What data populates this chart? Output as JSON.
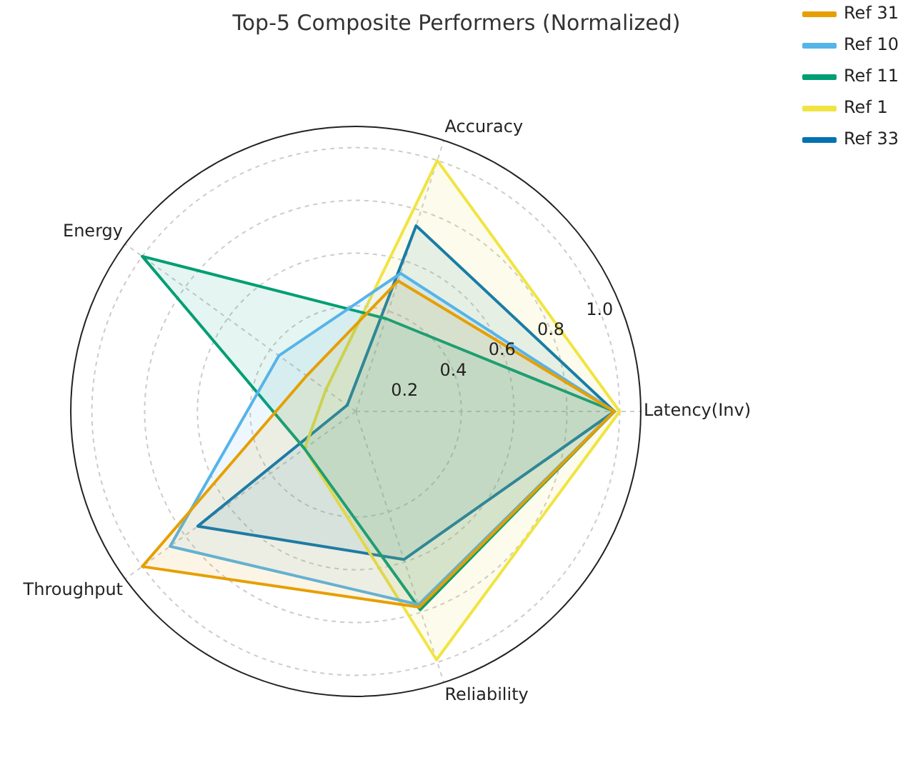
{
  "chart_data": {
    "type": "radar",
    "title": "Top-5 Composite Performers (Normalized)",
    "categories": [
      "Accuracy",
      "Latency(Inv)",
      "Reliability",
      "Throughput",
      "Energy"
    ],
    "series": [
      {
        "name": "Ref 31",
        "color": "#e69f00",
        "values": [
          0.52,
          0.98,
          0.78,
          1.0,
          0.23
        ]
      },
      {
        "name": "Ref 10",
        "color": "#56b4e9",
        "values": [
          0.55,
          0.98,
          0.77,
          0.87,
          0.36
        ]
      },
      {
        "name": "Ref 11",
        "color": "#009e73",
        "values": [
          0.37,
          0.98,
          0.79,
          0.24,
          1.0
        ]
      },
      {
        "name": "Ref 1",
        "color": "#f0e442",
        "values": [
          1.0,
          1.0,
          0.99,
          0.24,
          0.14
        ]
      },
      {
        "name": "Ref 33",
        "color": "#0072b2",
        "values": [
          0.74,
          0.98,
          0.59,
          0.74,
          0.04
        ]
      }
    ],
    "ylim": [
      0,
      1.08
    ],
    "yticks": [
      0.2,
      0.4,
      0.6,
      0.8,
      {
        "value": 1,
        "label": "1.0"
      }
    ],
    "grid": true,
    "legend": "top right",
    "marker": "none",
    "line_style": "solid"
  }
}
